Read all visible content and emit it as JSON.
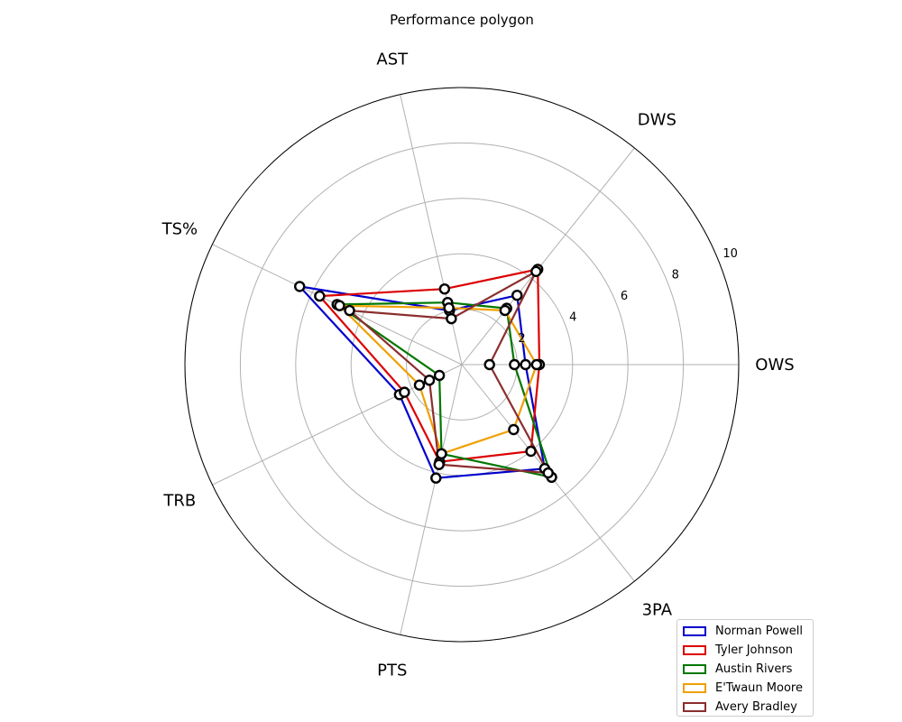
{
  "chart_data": {
    "type": "radar",
    "title": "Performance polygon",
    "axes": [
      "OWS",
      "DWS",
      "AST",
      "TS%",
      "TRB",
      "PTS",
      "3PA"
    ],
    "rlim": [
      0,
      10
    ],
    "radial_ticks": [
      "2",
      "4",
      "6",
      "8",
      "10"
    ],
    "grid": true,
    "legend_position": "bottom-right",
    "series": [
      {
        "name": "Norman Powell",
        "color": "#0000cc",
        "values": [
          2.3,
          3.2,
          2.0,
          6.5,
          2.5,
          4.2,
          4.8
        ]
      },
      {
        "name": "Tyler Johnson",
        "color": "#dd0000",
        "values": [
          2.8,
          4.4,
          2.8,
          5.7,
          2.3,
          3.6,
          4.0
        ]
      },
      {
        "name": "Austin Rivers",
        "color": "#007700",
        "values": [
          1.9,
          2.6,
          2.3,
          5.0,
          0.9,
          3.3,
          5.2
        ]
      },
      {
        "name": "E'Twaun Moore",
        "color": "#f0a000",
        "values": [
          2.7,
          2.5,
          2.1,
          4.9,
          1.7,
          3.3,
          3.0
        ]
      },
      {
        "name": "Avery Bradley",
        "color": "#8b2e2e",
        "values": [
          1.0,
          4.3,
          1.7,
          4.5,
          1.3,
          3.7,
          5.0
        ]
      }
    ]
  }
}
